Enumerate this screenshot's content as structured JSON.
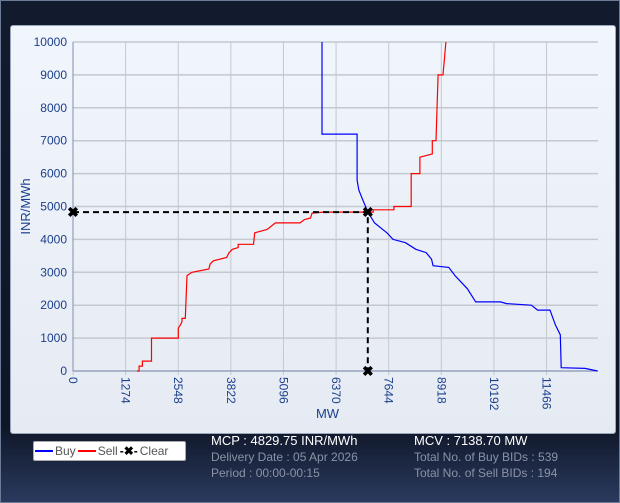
{
  "chart_data": {
    "type": "line",
    "xlabel": "MW",
    "ylabel": "INR/MWh",
    "xlim": [
      0,
      12712
    ],
    "ylim": [
      0,
      10000
    ],
    "x_ticks": [
      0,
      1274,
      2548,
      3822,
      5096,
      6370,
      7644,
      8918,
      10192,
      11466
    ],
    "y_ticks": [
      0,
      1000,
      2000,
      3000,
      4000,
      5000,
      6000,
      7000,
      8000,
      9000,
      10000
    ],
    "grid": true,
    "legend_position": "bottom-left",
    "series": [
      {
        "name": "Buy",
        "color": "#0000ff",
        "points": [
          [
            6030,
            10000
          ],
          [
            6030,
            7200
          ],
          [
            6880,
            7200
          ],
          [
            6880,
            5800
          ],
          [
            6920,
            5500
          ],
          [
            7000,
            5250
          ],
          [
            7140,
            4830
          ],
          [
            7300,
            4500
          ],
          [
            7600,
            4200
          ],
          [
            7750,
            4000
          ],
          [
            8050,
            3900
          ],
          [
            8300,
            3700
          ],
          [
            8550,
            3600
          ],
          [
            8680,
            3400
          ],
          [
            8720,
            3200
          ],
          [
            9100,
            3150
          ],
          [
            9250,
            2900
          ],
          [
            9400,
            2700
          ],
          [
            9550,
            2500
          ],
          [
            9750,
            2100
          ],
          [
            10350,
            2100
          ],
          [
            10500,
            2050
          ],
          [
            11100,
            2000
          ],
          [
            11250,
            1850
          ],
          [
            11550,
            1850
          ],
          [
            11680,
            1400
          ],
          [
            11800,
            1100
          ],
          [
            11820,
            100
          ],
          [
            12400,
            80
          ],
          [
            12700,
            0
          ]
        ]
      },
      {
        "name": "Sell",
        "color": "#ff0000",
        "points": [
          [
            1550,
            0
          ],
          [
            1600,
            0
          ],
          [
            1600,
            150
          ],
          [
            1680,
            150
          ],
          [
            1680,
            300
          ],
          [
            1900,
            300
          ],
          [
            1900,
            1000
          ],
          [
            2550,
            1000
          ],
          [
            2550,
            1300
          ],
          [
            2600,
            1400
          ],
          [
            2640,
            1500
          ],
          [
            2640,
            1600
          ],
          [
            2720,
            1600
          ],
          [
            2760,
            2900
          ],
          [
            2880,
            3000
          ],
          [
            3290,
            3100
          ],
          [
            3320,
            3250
          ],
          [
            3400,
            3350
          ],
          [
            3720,
            3450
          ],
          [
            3780,
            3600
          ],
          [
            3860,
            3700
          ],
          [
            4000,
            3750
          ],
          [
            4000,
            3850
          ],
          [
            4370,
            3850
          ],
          [
            4400,
            4200
          ],
          [
            4700,
            4300
          ],
          [
            4900,
            4500
          ],
          [
            5500,
            4500
          ],
          [
            5600,
            4600
          ],
          [
            5750,
            4650
          ],
          [
            5790,
            4800
          ],
          [
            6070,
            4830
          ],
          [
            7270,
            4830
          ],
          [
            7270,
            4900
          ],
          [
            7770,
            4900
          ],
          [
            7770,
            5000
          ],
          [
            8190,
            5000
          ],
          [
            8190,
            6000
          ],
          [
            8400,
            6000
          ],
          [
            8400,
            6500
          ],
          [
            8700,
            6600
          ],
          [
            8700,
            7000
          ],
          [
            8790,
            7000
          ],
          [
            8840,
            9000
          ],
          [
            8960,
            9000
          ],
          [
            9030,
            10000
          ]
        ]
      },
      {
        "name": "Clear",
        "color": "#000000",
        "points": [
          [
            0,
            4829.75
          ],
          [
            7138.7,
            4829.75
          ],
          [
            7138.7,
            0
          ]
        ]
      }
    ]
  },
  "legend": {
    "buy": "Buy",
    "sell": "Sell",
    "clear": "Clear"
  },
  "info": {
    "mcp": "MCP : 4829.75 INR/MWh",
    "delivery_date": "Delivery Date : 05 Apr 2026",
    "period": "Period :  00:00-00:15",
    "mcv": "MCV : 7138.70 MW",
    "buy_bids": "Total No. of Buy BIDs : 539",
    "sell_bids": "Total No. of Sell BIDs : 194"
  }
}
